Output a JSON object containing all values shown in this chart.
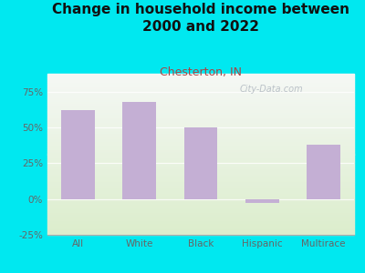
{
  "title": "Change in household income between\n2000 and 2022",
  "subtitle": "Chesterton, IN",
  "categories": [
    "All",
    "White",
    "Black",
    "Hispanic",
    "Multirace"
  ],
  "values": [
    62,
    68,
    50,
    -3,
    38
  ],
  "bar_color": "#c4afd4",
  "title_fontsize": 11,
  "subtitle_fontsize": 9,
  "subtitle_color": "#aa4444",
  "title_color": "#111111",
  "tick_color": "#666666",
  "background_outer": "#00e8f0",
  "ylim": [
    -25,
    87.5
  ],
  "yticks": [
    -25,
    0,
    25,
    50,
    75
  ],
  "watermark": "City-Data.com",
  "watermark_color": "#b0b8c0"
}
